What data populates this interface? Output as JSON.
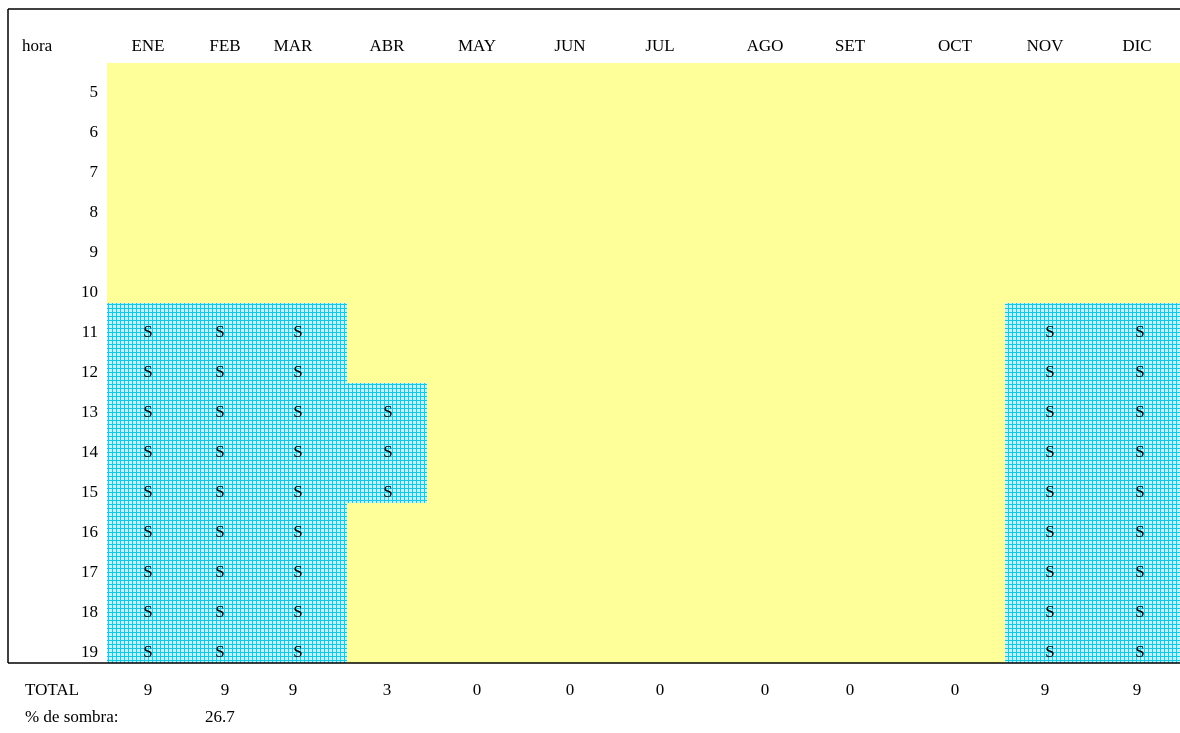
{
  "table": {
    "corner": "hora",
    "months": [
      "ENE",
      "FEB",
      "MAR",
      "ABR",
      "MAY",
      "JUN",
      "JUL",
      "AGO",
      "SET",
      "OCT",
      "NOV",
      "DIC"
    ],
    "rows": [
      {
        "hour": 5,
        "cells": [
          null,
          null,
          null,
          null,
          null,
          null,
          null,
          null,
          null,
          null,
          null,
          null
        ]
      },
      {
        "hour": 6,
        "cells": [
          null,
          null,
          null,
          null,
          null,
          null,
          null,
          null,
          null,
          null,
          null,
          null
        ]
      },
      {
        "hour": 7,
        "cells": [
          null,
          null,
          null,
          null,
          null,
          null,
          null,
          null,
          null,
          null,
          null,
          null
        ]
      },
      {
        "hour": 8,
        "cells": [
          null,
          null,
          null,
          null,
          null,
          null,
          null,
          null,
          null,
          null,
          null,
          null
        ]
      },
      {
        "hour": 9,
        "cells": [
          null,
          null,
          null,
          null,
          null,
          null,
          null,
          null,
          null,
          null,
          null,
          null
        ]
      },
      {
        "hour": 10,
        "cells": [
          null,
          null,
          null,
          null,
          null,
          null,
          null,
          null,
          null,
          null,
          null,
          null
        ]
      },
      {
        "hour": 11,
        "cells": [
          "S",
          "S",
          "S",
          null,
          null,
          null,
          null,
          null,
          null,
          null,
          "S",
          "S"
        ]
      },
      {
        "hour": 12,
        "cells": [
          "S",
          "S",
          "S",
          null,
          null,
          null,
          null,
          null,
          null,
          null,
          "S",
          "S"
        ]
      },
      {
        "hour": 13,
        "cells": [
          "S",
          "S",
          "S",
          "S",
          null,
          null,
          null,
          null,
          null,
          null,
          "S",
          "S"
        ]
      },
      {
        "hour": 14,
        "cells": [
          "S",
          "S",
          "S",
          "S",
          null,
          null,
          null,
          null,
          null,
          null,
          "S",
          "S"
        ]
      },
      {
        "hour": 15,
        "cells": [
          "S",
          "S",
          "S",
          "S",
          null,
          null,
          null,
          null,
          null,
          null,
          "S",
          "S"
        ]
      },
      {
        "hour": 16,
        "cells": [
          "S",
          "S",
          "S",
          null,
          null,
          null,
          null,
          null,
          null,
          null,
          "S",
          "S"
        ]
      },
      {
        "hour": 17,
        "cells": [
          "S",
          "S",
          "S",
          null,
          null,
          null,
          null,
          null,
          null,
          null,
          "S",
          "S"
        ]
      },
      {
        "hour": 18,
        "cells": [
          "S",
          "S",
          "S",
          null,
          null,
          null,
          null,
          null,
          null,
          null,
          "S",
          "S"
        ]
      },
      {
        "hour": 19,
        "cells": [
          "S",
          "S",
          "S",
          null,
          null,
          null,
          null,
          null,
          null,
          null,
          "S",
          "S"
        ]
      }
    ],
    "totals_label": "TOTAL",
    "totals": [
      9,
      9,
      9,
      3,
      0,
      0,
      0,
      0,
      0,
      0,
      9,
      9
    ]
  },
  "shade": {
    "label": "% de sombra:",
    "value": 26.7
  }
}
